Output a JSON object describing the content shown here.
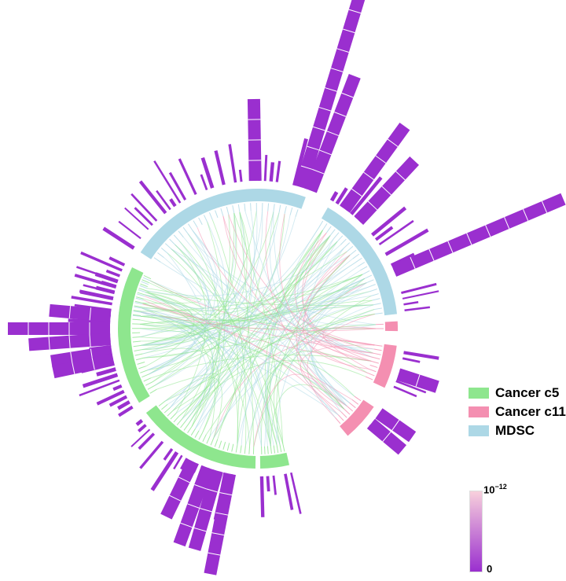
{
  "chart_data": {
    "type": "chord",
    "legend": [
      {
        "label": "Cancer c5",
        "color": "#8ee68e"
      },
      {
        "label": "Cancer c11",
        "color": "#f48fb1"
      },
      {
        "label": "MDSC",
        "color": "#add8e6"
      }
    ],
    "colorbar": {
      "top_label_base": "10",
      "top_label_exponent": "−12",
      "bottom_label": "0",
      "low_color": "#9a2fcf",
      "high_color": "#f8d0dc"
    },
    "sectors": [
      {
        "group": "MDSC",
        "start": 185,
        "end": 205,
        "ticks": 10
      },
      {
        "group": "MDSC",
        "start": 213,
        "end": 290,
        "ticks": 28
      },
      {
        "group": "MDSC",
        "start": 300,
        "end": 354,
        "ticks": 24
      },
      {
        "group": "Cancer c11",
        "start": 357,
        "end": 361,
        "ticks": 2
      },
      {
        "group": "Cancer c11",
        "start": 367,
        "end": 385,
        "ticks": 9
      },
      {
        "group": "Cancer c11",
        "start": 394,
        "end": 410,
        "ticks": 8
      },
      {
        "group": "Cancer c5",
        "start": 437,
        "end": 449,
        "ticks": 8
      },
      {
        "group": "Cancer c5",
        "start": 451,
        "end": 503,
        "ticks": 26
      },
      {
        "group": "Cancer c5",
        "start": 508,
        "end": 566,
        "ticks": 28
      }
    ],
    "big_bars": [
      {
        "angle": 287,
        "value": 10
      },
      {
        "angle": 291,
        "value": 6
      },
      {
        "angle": 337,
        "value": 9
      },
      {
        "angle": 306,
        "value": 5
      },
      {
        "angle": 313,
        "value": 4
      },
      {
        "angle": 269,
        "value": 4
      },
      {
        "angle": 461,
        "value": 5
      },
      {
        "angle": 466,
        "value": 4
      },
      {
        "angle": 470,
        "value": 4
      },
      {
        "angle": 476,
        "value": 3
      },
      {
        "angle": 540,
        "value": 5
      },
      {
        "angle": 536,
        "value": 4
      },
      {
        "angle": 531,
        "value": 3
      },
      {
        "angle": 528,
        "value": 3
      },
      {
        "angle": 545,
        "value": 3
      },
      {
        "angle": 395,
        "value": 2
      },
      {
        "angle": 400,
        "value": 2
      },
      {
        "angle": 378,
        "value": 2
      }
    ]
  }
}
